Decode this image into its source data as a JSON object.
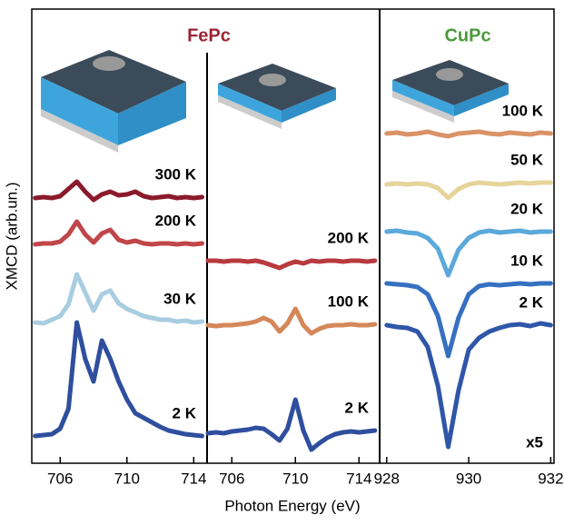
{
  "chart_data": [
    {
      "type": "line",
      "title": "FePc",
      "title_color": "#9b2335",
      "ylabel": "XMCD (arb.un.)",
      "x": [
        704.5,
        705,
        705.5,
        706,
        706.5,
        707,
        707.5,
        708,
        708.5,
        709,
        709.5,
        710,
        710.5,
        711,
        711.5,
        712,
        712.5,
        713,
        713.5,
        714,
        714.5
      ],
      "xlim": [
        704.3,
        714.8
      ],
      "xticks": [
        706,
        710,
        714
      ],
      "ylim": [
        0,
        50
      ],
      "series": [
        {
          "name": "300 K",
          "color": "#8b1a2b",
          "values": [
            29.2,
            29.3,
            29.2,
            29.4,
            30.2,
            31.0,
            29.9,
            29.0,
            29.6,
            29.9,
            29.5,
            29.6,
            29.9,
            29.4,
            29.2,
            29.3,
            29.4,
            29.2,
            29.3,
            29.2,
            29.3
          ]
        },
        {
          "name": "200 K",
          "color": "#c0464a",
          "values": [
            24.1,
            24.2,
            24.2,
            24.4,
            25.2,
            26.6,
            25.2,
            24.3,
            25.3,
            25.7,
            24.6,
            24.3,
            24.5,
            24.2,
            24.1,
            24.2,
            24.2,
            24.1,
            24.2,
            24.1,
            24.2
          ]
        },
        {
          "name": "30 K",
          "color": "#a8cde0",
          "values": [
            15.5,
            15.4,
            15.8,
            16.2,
            17.5,
            20.8,
            18.8,
            16.8,
            18.6,
            19.0,
            17.6,
            17.0,
            16.6,
            16.2,
            16.0,
            15.8,
            15.8,
            15.6,
            15.7,
            15.5,
            15.6
          ]
        },
        {
          "name": "2 K",
          "color": "#2f4f9e",
          "values": [
            3.0,
            3.1,
            3.2,
            3.8,
            6.0,
            15.5,
            11.5,
            9.0,
            13.5,
            11.5,
            9.0,
            7.0,
            5.5,
            5.0,
            4.5,
            4.0,
            3.6,
            3.4,
            3.2,
            3.1,
            3.0
          ]
        }
      ]
    },
    {
      "type": "line",
      "xlabel": "Photon Energy (eV)",
      "x": [
        704.5,
        705,
        705.5,
        706,
        706.5,
        707,
        707.5,
        708,
        708.5,
        709,
        709.5,
        710,
        710.5,
        711,
        711.5,
        712,
        712.5,
        713,
        713.5,
        714,
        714.5,
        715
      ],
      "xlim": [
        704.5,
        715.3
      ],
      "xticks": [
        706,
        710,
        714
      ],
      "ylim": [
        0,
        50
      ],
      "series": [
        {
          "name": "200 K",
          "color": "#b83a3f",
          "values": [
            22.3,
            22.3,
            22.2,
            22.3,
            22.3,
            22.2,
            22.3,
            22.1,
            21.8,
            21.5,
            21.9,
            22.2,
            22.0,
            22.3,
            22.2,
            22.3,
            22.3,
            22.2,
            22.3,
            22.3,
            22.2,
            22.3
          ]
        },
        {
          "name": "100 K",
          "color": "#d4885a",
          "values": [
            15.2,
            15.1,
            15.2,
            15.2,
            15.3,
            15.4,
            15.6,
            16.0,
            15.6,
            14.5,
            15.4,
            17.0,
            15.2,
            14.3,
            14.8,
            15.1,
            15.2,
            15.2,
            15.3,
            15.2,
            15.2,
            15.3
          ]
        },
        {
          "name": "2 K",
          "color": "#2f4f9e",
          "values": [
            3.3,
            3.4,
            3.3,
            3.5,
            3.6,
            3.7,
            3.9,
            3.8,
            3.2,
            2.5,
            3.8,
            7.0,
            3.6,
            1.5,
            2.2,
            2.8,
            3.2,
            3.4,
            3.5,
            3.4,
            3.5,
            3.6
          ]
        }
      ]
    },
    {
      "type": "line",
      "title": "CuPc",
      "title_color": "#4a9a3a",
      "annotation": "x5",
      "x": [
        928,
        928.25,
        928.5,
        928.75,
        929,
        929.25,
        929.5,
        929.75,
        930,
        930.25,
        930.5,
        930.75,
        931,
        931.25,
        931.5,
        931.75,
        932
      ],
      "xlim": [
        927.85,
        932.08
      ],
      "xticks": [
        928,
        930,
        932
      ],
      "ylim": [
        0,
        50
      ],
      "series": [
        {
          "name": "100 K",
          "color": "#d99367",
          "values": [
            36.3,
            36.4,
            36.2,
            36.3,
            36.5,
            36.2,
            36.0,
            36.3,
            36.4,
            36.5,
            36.3,
            36.2,
            36.4,
            36.3,
            36.2,
            36.4,
            36.3
          ]
        },
        {
          "name": "50 K",
          "color": "#e6d49a",
          "values": [
            30.7,
            30.8,
            30.7,
            30.8,
            30.7,
            30.3,
            29.2,
            30.2,
            30.7,
            30.9,
            30.8,
            30.7,
            30.8,
            30.9,
            30.8,
            30.9,
            30.9
          ]
        },
        {
          "name": "20 K",
          "color": "#5aa8dc",
          "values": [
            25.5,
            25.6,
            25.4,
            25.3,
            24.8,
            23.6,
            20.7,
            23.5,
            24.8,
            25.4,
            25.6,
            25.4,
            25.5,
            25.6,
            25.4,
            25.5,
            25.5
          ]
        },
        {
          "name": "10 K",
          "color": "#3670c0",
          "values": [
            19.8,
            19.7,
            19.6,
            19.4,
            18.6,
            16.2,
            11.8,
            16.0,
            18.6,
            19.5,
            19.7,
            19.6,
            19.7,
            19.8,
            19.7,
            19.8,
            19.8
          ]
        },
        {
          "name": "2 K",
          "color": "#2f56a8",
          "values": [
            15.2,
            15.0,
            14.9,
            14.5,
            12.8,
            8.5,
            1.8,
            8.0,
            12.5,
            13.8,
            14.5,
            14.9,
            15.2,
            15.3,
            15.1,
            15.4,
            15.2
          ]
        }
      ]
    }
  ]
}
